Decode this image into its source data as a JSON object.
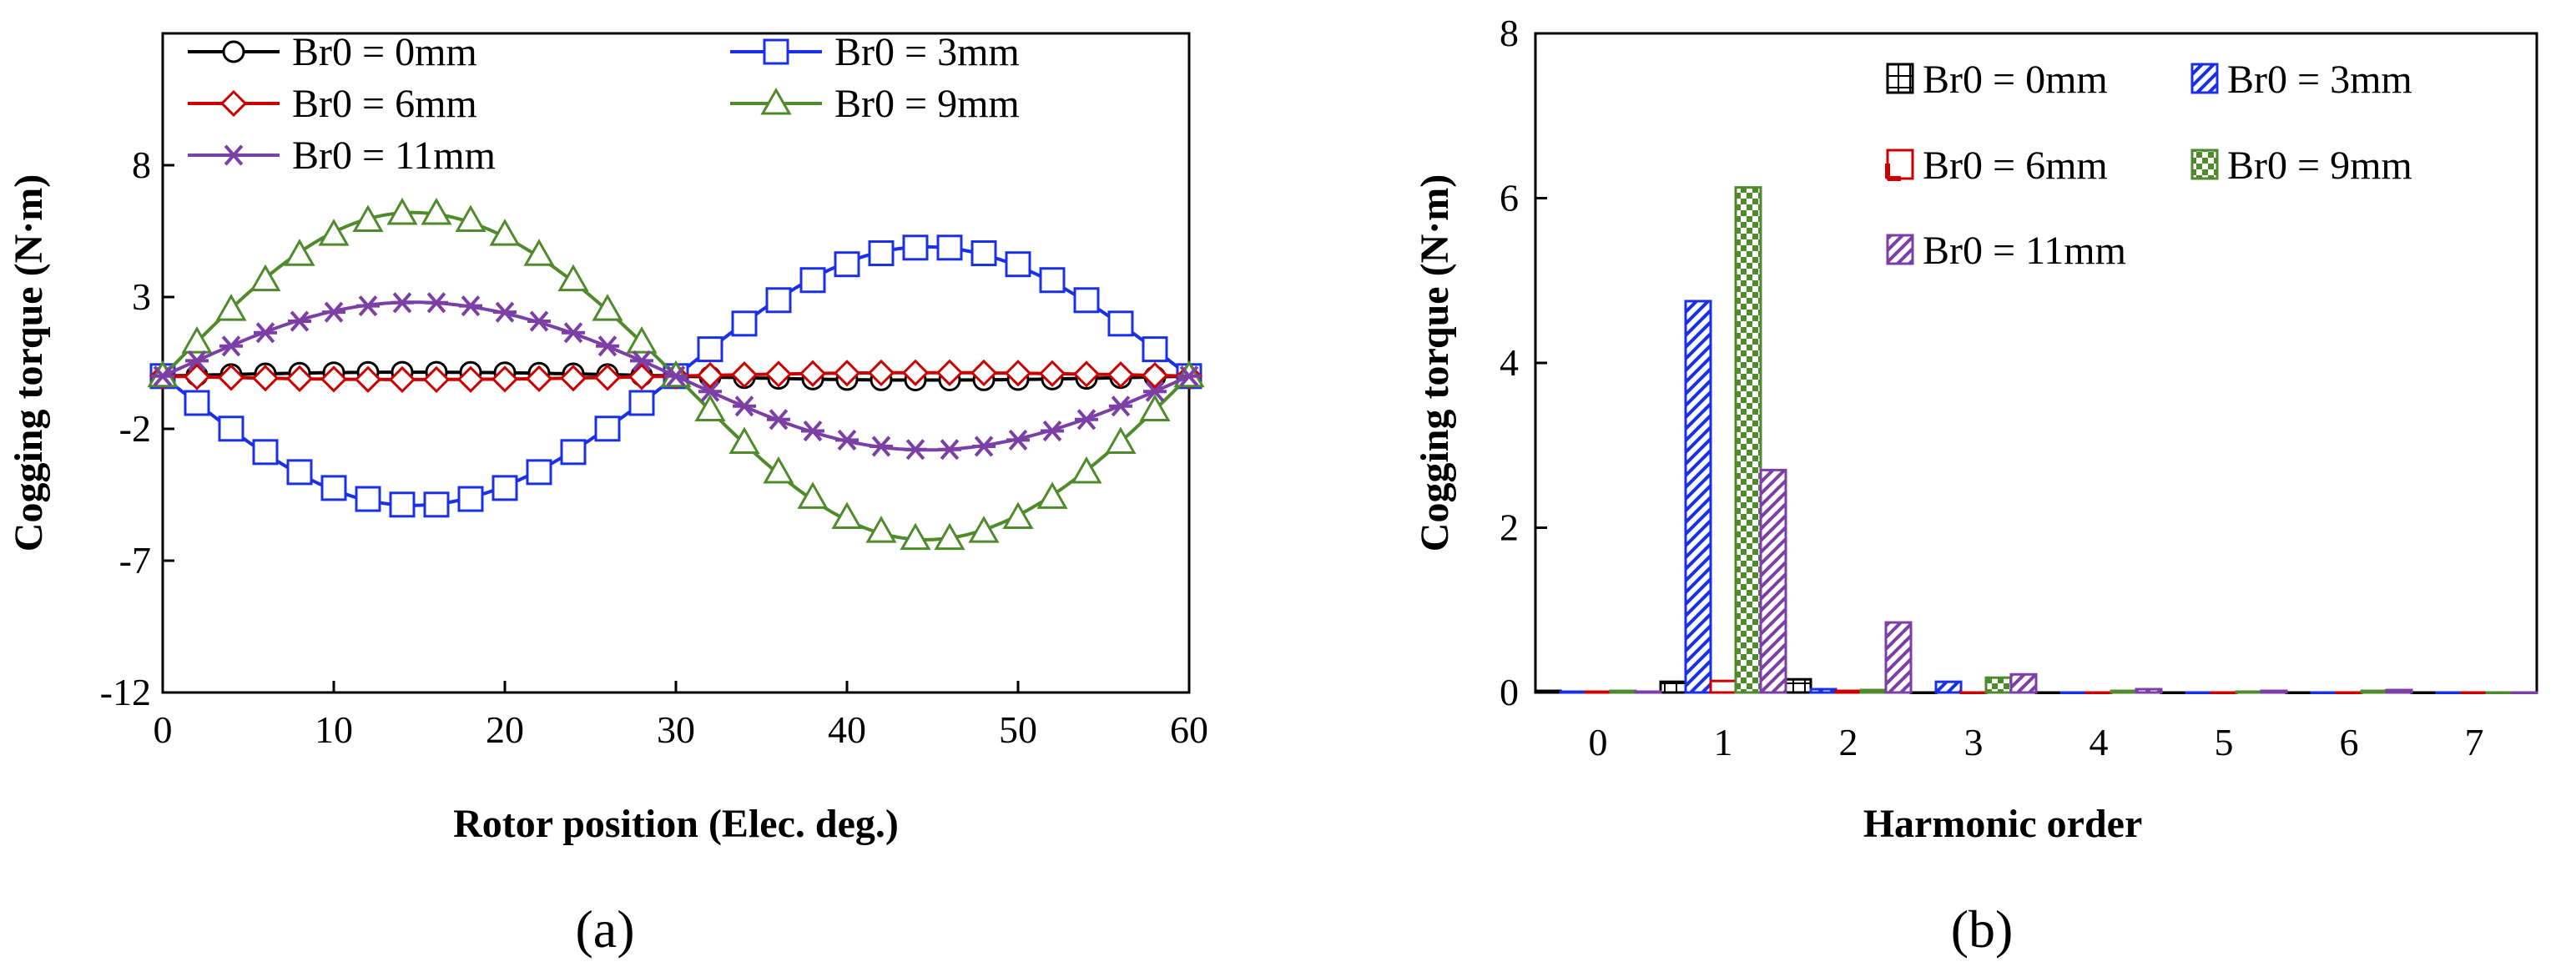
{
  "colors": {
    "black": "#000000",
    "blue": "#1a30e6",
    "red": "#cc0000",
    "green": "#4f8a2c",
    "purple": "#7b3fa5"
  },
  "chart_data": [
    {
      "type": "line",
      "panel_label": "(a)",
      "xlabel": "Rotor position (Elec. deg.)",
      "ylabel": "Cogging torque (N·m)",
      "xlim": [
        0,
        60
      ],
      "ylim": [
        -12,
        13
      ],
      "xticks": [
        "0",
        "10",
        "20",
        "30",
        "40",
        "50",
        "60"
      ],
      "yticks": [
        "-12",
        "-7",
        "-2",
        "3",
        "8"
      ],
      "legend_position": "top",
      "series": [
        {
          "name": "Br0 = 0mm",
          "marker": "circle",
          "color_key": "black",
          "amplitude": 0.15,
          "phase": 1
        },
        {
          "name": "Br0 = 3mm",
          "marker": "square",
          "color_key": "blue",
          "amplitude": 4.9,
          "phase": -1
        },
        {
          "name": "Br0 = 6mm",
          "marker": "diamond",
          "color_key": "red",
          "amplitude": 0.13,
          "phase": -1
        },
        {
          "name": "Br0 = 9mm",
          "marker": "triangle",
          "color_key": "green",
          "amplitude": 6.2,
          "phase": 1
        },
        {
          "name": "Br0 = 11mm",
          "marker": "asterisk",
          "color_key": "purple",
          "amplitude": 2.8,
          "phase": 1
        }
      ]
    },
    {
      "type": "bar",
      "panel_label": "(b)",
      "xlabel": "Harmonic order",
      "ylabel": "Cogging torque (N·m)",
      "categories": [
        "0",
        "1",
        "2",
        "3",
        "4",
        "5",
        "6",
        "7"
      ],
      "ylim": [
        0,
        8
      ],
      "yticks": [
        "0",
        "2",
        "4",
        "6",
        "8"
      ],
      "legend_position": "top-right",
      "series": [
        {
          "name": "Br0 = 0mm",
          "color_key": "black",
          "pattern": "box",
          "values": [
            0.02,
            0.13,
            0.16,
            0.0,
            0.0,
            0.0,
            0.0,
            0.0
          ]
        },
        {
          "name": "Br0 = 3mm",
          "color_key": "blue",
          "pattern": "stripes",
          "values": [
            0.01,
            4.75,
            0.04,
            0.13,
            0.0,
            0.0,
            0.0,
            0.0
          ]
        },
        {
          "name": "Br0 = 6mm",
          "color_key": "red",
          "pattern": "corner",
          "values": [
            0.01,
            0.14,
            0.02,
            0.0,
            0.0,
            0.0,
            0.0,
            0.0
          ]
        },
        {
          "name": "Br0 = 9mm",
          "color_key": "green",
          "pattern": "checker",
          "values": [
            0.02,
            6.13,
            0.03,
            0.18,
            0.02,
            0.01,
            0.02,
            0.0
          ]
        },
        {
          "name": "Br0 = 11mm",
          "color_key": "purple",
          "pattern": "stripes",
          "values": [
            0.01,
            2.7,
            0.85,
            0.22,
            0.04,
            0.02,
            0.03,
            0.0
          ]
        }
      ]
    }
  ]
}
